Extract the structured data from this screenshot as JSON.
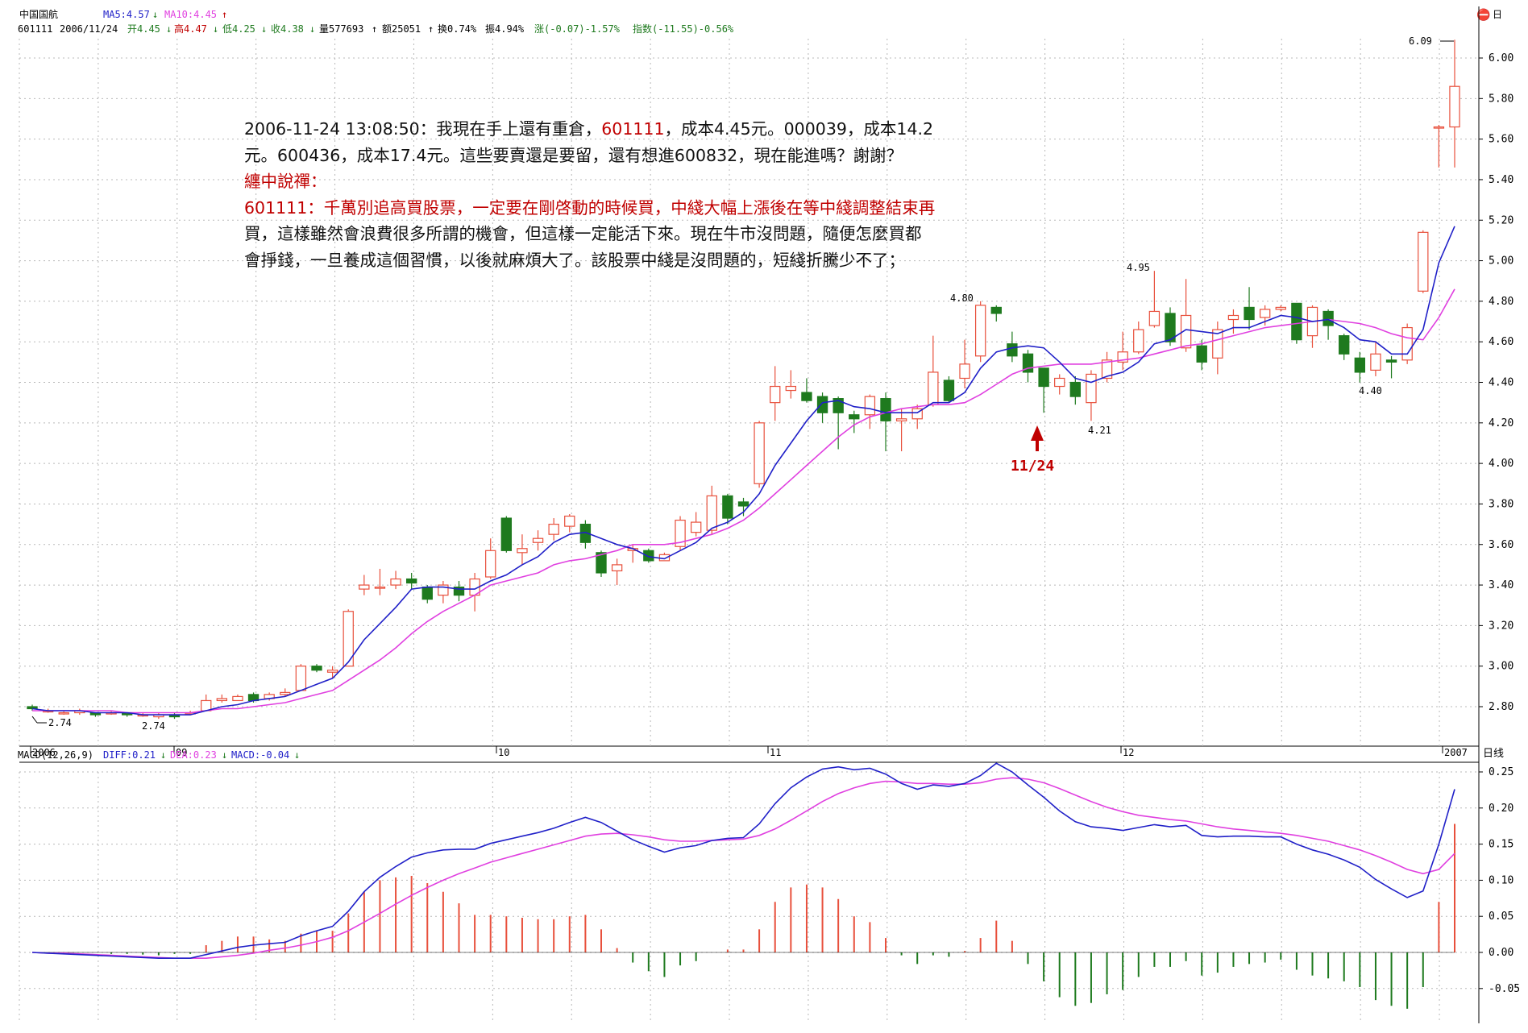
{
  "header": {
    "stock_name": "中国国航",
    "ma5_label": "MA5:4.57",
    "ma5_arrow": "↓",
    "ma10_label": "MA10:4.45",
    "ma10_arrow": "↑",
    "code": "601111",
    "date": "2006/11/24",
    "open": "开4.45",
    "open_arrow": "↓",
    "high": "高4.47",
    "high_arrow": "↓",
    "low": "低4.25",
    "low_arrow": "↓",
    "close": "收4.38",
    "close_arrow": "↓",
    "volume": "量577693",
    "volume_arrow": "↑",
    "amount": "额25051",
    "amount_arrow": "↑",
    "turnover": "换0.74%",
    "amplitude": "振4.94%",
    "change": "涨(-0.07)-1.57%",
    "index": "指数(-11.55)-0.56%",
    "right_icon": "⛔",
    "right_label": "日"
  },
  "colors": {
    "up": "#e8503c",
    "down": "#1e7a1e",
    "ma5": "#2020c8",
    "ma10": "#e040e0",
    "diff": "#2020c8",
    "dea": "#e040e0",
    "grid": "#b8b8b8",
    "red_text": "#c00000",
    "arrow": "#c00000"
  },
  "annotation": {
    "line1_a": "2006-11-24 13:08:50：我現在手上還有重倉，",
    "line1_code": "601111",
    "line1_b": "，成本4.45元。000039，成本14.2",
    "line2": "元。600436，成本17.4元。這些要賣還是要留，還有想進600832，現在能進嗎？謝謝？",
    "line3": "纏中說禪：",
    "line4_red": "601111：千萬別追高買股票，一定要在剛啓動的時候買，中綫大幅上漲後在等中綫調整結束再",
    "line5": "買，這樣雖然會浪費很多所謂的機會，但這樣一定能活下來。現在牛市沒問題，隨便怎麼買都",
    "line6": "會掙錢，一旦養成這個習慣，以後就麻煩大了。該股票中綫是沒問題的，短綫折騰少不了；"
  },
  "markers": {
    "arrow_label": "11/24",
    "peak_609": "6.09",
    "low_274a": "2.74",
    "low_274b": "2.74",
    "high_480": "4.80",
    "high_495": "4.95",
    "low_421": "4.21",
    "low_440": "4.40"
  },
  "axis": {
    "price_ticks": [
      "6.00",
      "5.80",
      "5.60",
      "5.40",
      "5.20",
      "5.00",
      "4.80",
      "4.60",
      "4.40",
      "4.20",
      "4.00",
      "3.80",
      "3.60",
      "3.40",
      "3.20",
      "3.00",
      "2.80"
    ],
    "date_labels": [
      "2006",
      "09",
      "10",
      "11",
      "12",
      "2007"
    ],
    "period_label": "日线",
    "macd_ticks": [
      "0.25",
      "0.20",
      "0.15",
      "0.10",
      "0.05",
      "0.00",
      "-0.05"
    ]
  },
  "macd_header": {
    "title": "MACD(12,26,9)",
    "diff": "DIFF:0.21",
    "diff_arrow": "↓",
    "dea": "DEA:0.23",
    "dea_arrow": "↓",
    "macd": "MACD:-0.04",
    "macd_arrow": "↓"
  },
  "chart_data": [
    {
      "type": "candlestick",
      "price_range": [
        2.7,
        6.15
      ],
      "candles": [
        [
          2.8,
          2.79,
          2.81,
          2.78
        ],
        [
          2.78,
          2.78,
          2.79,
          2.77
        ],
        [
          2.77,
          2.77,
          2.78,
          2.76
        ],
        [
          2.77,
          2.78,
          2.79,
          2.76
        ],
        [
          2.77,
          2.76,
          2.77,
          2.75
        ],
        [
          2.77,
          2.77,
          2.78,
          2.76
        ],
        [
          2.77,
          2.76,
          2.77,
          2.75
        ],
        [
          2.76,
          2.76,
          2.77,
          2.75
        ],
        [
          2.75,
          2.76,
          2.77,
          2.74
        ],
        [
          2.76,
          2.75,
          2.77,
          2.74
        ],
        [
          2.77,
          2.77,
          2.78,
          2.76
        ],
        [
          2.78,
          2.83,
          2.86,
          2.78
        ],
        [
          2.83,
          2.84,
          2.86,
          2.82
        ],
        [
          2.83,
          2.85,
          2.86,
          2.83
        ],
        [
          2.86,
          2.83,
          2.87,
          2.82
        ],
        [
          2.84,
          2.86,
          2.87,
          2.83
        ],
        [
          2.86,
          2.87,
          2.89,
          2.85
        ],
        [
          2.88,
          3.0,
          3.01,
          2.88
        ],
        [
          3.0,
          2.98,
          3.01,
          2.97
        ],
        [
          2.97,
          2.98,
          3.0,
          2.94
        ],
        [
          3.0,
          3.27,
          3.28,
          3.0
        ],
        [
          3.38,
          3.4,
          3.45,
          3.35
        ],
        [
          3.39,
          3.39,
          3.48,
          3.35
        ],
        [
          3.4,
          3.43,
          3.47,
          3.38
        ],
        [
          3.43,
          3.41,
          3.46,
          3.38
        ],
        [
          3.39,
          3.33,
          3.4,
          3.31
        ],
        [
          3.35,
          3.4,
          3.42,
          3.31
        ],
        [
          3.39,
          3.35,
          3.42,
          3.32
        ],
        [
          3.35,
          3.43,
          3.46,
          3.27
        ],
        [
          3.44,
          3.57,
          3.63,
          3.43
        ],
        [
          3.73,
          3.57,
          3.74,
          3.56
        ],
        [
          3.56,
          3.58,
          3.65,
          3.5
        ],
        [
          3.61,
          3.63,
          3.67,
          3.57
        ],
        [
          3.65,
          3.7,
          3.73,
          3.62
        ],
        [
          3.69,
          3.74,
          3.75,
          3.66
        ],
        [
          3.7,
          3.61,
          3.72,
          3.58
        ],
        [
          3.56,
          3.46,
          3.57,
          3.44
        ],
        [
          3.47,
          3.5,
          3.53,
          3.4
        ],
        [
          3.57,
          3.58,
          3.6,
          3.51
        ],
        [
          3.57,
          3.52,
          3.58,
          3.51
        ],
        [
          3.52,
          3.55,
          3.56,
          3.52
        ],
        [
          3.59,
          3.72,
          3.74,
          3.57
        ],
        [
          3.66,
          3.71,
          3.76,
          3.64
        ],
        [
          3.67,
          3.84,
          3.89,
          3.65
        ],
        [
          3.84,
          3.73,
          3.85,
          3.7
        ],
        [
          3.81,
          3.79,
          3.83,
          3.74
        ],
        [
          3.9,
          4.2,
          4.21,
          3.88
        ],
        [
          4.3,
          4.38,
          4.48,
          4.21
        ],
        [
          4.36,
          4.38,
          4.46,
          4.32
        ],
        [
          4.35,
          4.31,
          4.42,
          4.3
        ],
        [
          4.33,
          4.25,
          4.35,
          4.2
        ],
        [
          4.32,
          4.25,
          4.33,
          4.07
        ],
        [
          4.24,
          4.22,
          4.26,
          4.15
        ],
        [
          4.24,
          4.33,
          4.34,
          4.17
        ],
        [
          4.32,
          4.21,
          4.35,
          4.06
        ],
        [
          4.21,
          4.22,
          4.27,
          4.06
        ],
        [
          4.22,
          4.27,
          4.29,
          4.17
        ],
        [
          4.29,
          4.45,
          4.63,
          4.28
        ],
        [
          4.41,
          4.31,
          4.43,
          4.3
        ],
        [
          4.42,
          4.49,
          4.61,
          4.37
        ],
        [
          4.53,
          4.78,
          4.8,
          4.5
        ],
        [
          4.77,
          4.74,
          4.78,
          4.7
        ],
        [
          4.59,
          4.53,
          4.65,
          4.5
        ],
        [
          4.54,
          4.45,
          4.56,
          4.4
        ],
        [
          4.47,
          4.38,
          4.47,
          4.25
        ],
        [
          4.38,
          4.42,
          4.44,
          4.34
        ],
        [
          4.4,
          4.33,
          4.43,
          4.29
        ],
        [
          4.3,
          4.44,
          4.46,
          4.21
        ],
        [
          4.42,
          4.51,
          4.55,
          4.4
        ],
        [
          4.5,
          4.55,
          4.65,
          4.46
        ],
        [
          4.55,
          4.66,
          4.7,
          4.54
        ],
        [
          4.68,
          4.75,
          4.95,
          4.67
        ],
        [
          4.74,
          4.6,
          4.77,
          4.58
        ],
        [
          4.57,
          4.73,
          4.91,
          4.55
        ],
        [
          4.58,
          4.5,
          4.61,
          4.46
        ],
        [
          4.52,
          4.66,
          4.7,
          4.44
        ],
        [
          4.71,
          4.73,
          4.76,
          4.64
        ],
        [
          4.77,
          4.71,
          4.87,
          4.66
        ],
        [
          4.72,
          4.76,
          4.78,
          4.68
        ],
        [
          4.76,
          4.77,
          4.78,
          4.75
        ],
        [
          4.79,
          4.61,
          4.79,
          4.59
        ],
        [
          4.63,
          4.77,
          4.78,
          4.57
        ],
        [
          4.75,
          4.68,
          4.76,
          4.61
        ],
        [
          4.63,
          4.54,
          4.64,
          4.51
        ],
        [
          4.52,
          4.45,
          4.55,
          4.4
        ],
        [
          4.46,
          4.54,
          4.6,
          4.43
        ],
        [
          4.51,
          4.5,
          4.53,
          4.42
        ],
        [
          4.51,
          4.67,
          4.69,
          4.49
        ],
        [
          4.85,
          5.14,
          5.15,
          4.84
        ],
        [
          5.66,
          5.66,
          5.67,
          5.46
        ],
        [
          5.66,
          5.86,
          6.09,
          5.46
        ]
      ],
      "ma5": [
        2.79,
        2.78,
        2.78,
        2.78,
        2.77,
        2.77,
        2.77,
        2.76,
        2.76,
        2.76,
        2.76,
        2.78,
        2.8,
        2.81,
        2.83,
        2.84,
        2.85,
        2.88,
        2.91,
        2.94,
        3.02,
        3.13,
        3.21,
        3.29,
        3.38,
        3.39,
        3.39,
        3.38,
        3.38,
        3.42,
        3.45,
        3.5,
        3.54,
        3.61,
        3.65,
        3.66,
        3.63,
        3.6,
        3.58,
        3.54,
        3.53,
        3.57,
        3.61,
        3.68,
        3.71,
        3.76,
        3.85,
        3.99,
        4.1,
        4.21,
        4.3,
        4.31,
        4.28,
        4.27,
        4.25,
        4.25,
        4.25,
        4.3,
        4.3,
        4.35,
        4.47,
        4.55,
        4.57,
        4.58,
        4.57,
        4.5,
        4.42,
        4.4,
        4.43,
        4.45,
        4.5,
        4.59,
        4.61,
        4.66,
        4.65,
        4.64,
        4.67,
        4.67,
        4.7,
        4.73,
        4.72,
        4.7,
        4.71,
        4.67,
        4.61,
        4.6,
        4.54,
        4.54,
        4.66,
        4.99,
        5.17
      ],
      "ma10": [
        2.78,
        2.78,
        2.78,
        2.78,
        2.78,
        2.78,
        2.77,
        2.77,
        2.77,
        2.77,
        2.77,
        2.78,
        2.79,
        2.79,
        2.8,
        2.81,
        2.82,
        2.84,
        2.86,
        2.88,
        2.93,
        2.98,
        3.03,
        3.09,
        3.16,
        3.22,
        3.27,
        3.31,
        3.35,
        3.4,
        3.42,
        3.44,
        3.46,
        3.5,
        3.52,
        3.53,
        3.55,
        3.57,
        3.6,
        3.6,
        3.6,
        3.61,
        3.63,
        3.65,
        3.68,
        3.72,
        3.78,
        3.85,
        3.92,
        3.99,
        4.06,
        4.13,
        4.19,
        4.23,
        4.25,
        4.27,
        4.28,
        4.29,
        4.29,
        4.3,
        4.34,
        4.39,
        4.44,
        4.47,
        4.48,
        4.49,
        4.49,
        4.49,
        4.5,
        4.51,
        4.52,
        4.54,
        4.56,
        4.58,
        4.59,
        4.61,
        4.63,
        4.65,
        4.67,
        4.68,
        4.69,
        4.7,
        4.71,
        4.7,
        4.69,
        4.67,
        4.64,
        4.62,
        4.61,
        4.72,
        4.86
      ]
    },
    {
      "type": "macd",
      "range": [
        -0.08,
        0.27
      ],
      "diff": [
        0.0,
        -0.001,
        -0.002,
        -0.003,
        -0.004,
        -0.005,
        -0.006,
        -0.007,
        -0.008,
        -0.008,
        -0.008,
        -0.003,
        0.002,
        0.007,
        0.01,
        0.012,
        0.014,
        0.023,
        0.03,
        0.036,
        0.057,
        0.084,
        0.104,
        0.119,
        0.132,
        0.138,
        0.142,
        0.143,
        0.143,
        0.151,
        0.156,
        0.161,
        0.166,
        0.172,
        0.18,
        0.187,
        0.18,
        0.168,
        0.156,
        0.147,
        0.139,
        0.145,
        0.148,
        0.155,
        0.158,
        0.159,
        0.178,
        0.206,
        0.228,
        0.243,
        0.254,
        0.257,
        0.253,
        0.255,
        0.247,
        0.234,
        0.226,
        0.232,
        0.23,
        0.234,
        0.245,
        0.262,
        0.25,
        0.232,
        0.215,
        0.196,
        0.181,
        0.174,
        0.172,
        0.169,
        0.173,
        0.177,
        0.174,
        0.176,
        0.162,
        0.16,
        0.161,
        0.161,
        0.16,
        0.16,
        0.15,
        0.142,
        0.136,
        0.128,
        0.118,
        0.101,
        0.088,
        0.076,
        0.085,
        0.15,
        0.226
      ],
      "dea": [
        0.0,
        -0.001,
        -0.001,
        -0.002,
        -0.003,
        -0.004,
        -0.005,
        -0.006,
        -0.007,
        -0.008,
        -0.008,
        -0.008,
        -0.006,
        -0.004,
        -0.001,
        0.003,
        0.006,
        0.01,
        0.015,
        0.021,
        0.03,
        0.042,
        0.054,
        0.067,
        0.079,
        0.09,
        0.1,
        0.109,
        0.117,
        0.125,
        0.131,
        0.137,
        0.143,
        0.149,
        0.155,
        0.161,
        0.164,
        0.165,
        0.163,
        0.16,
        0.156,
        0.154,
        0.154,
        0.155,
        0.156,
        0.157,
        0.162,
        0.171,
        0.183,
        0.196,
        0.209,
        0.22,
        0.228,
        0.234,
        0.237,
        0.236,
        0.234,
        0.234,
        0.233,
        0.233,
        0.235,
        0.24,
        0.242,
        0.24,
        0.235,
        0.227,
        0.218,
        0.209,
        0.201,
        0.195,
        0.19,
        0.187,
        0.184,
        0.182,
        0.178,
        0.174,
        0.171,
        0.169,
        0.167,
        0.165,
        0.162,
        0.158,
        0.154,
        0.148,
        0.142,
        0.134,
        0.125,
        0.115,
        0.109,
        0.115,
        0.137
      ],
      "hist": [
        0.0,
        0.0,
        0.0,
        0.0,
        0.0,
        -0.002,
        -0.002,
        -0.003,
        -0.004,
        -0.002,
        -0.002,
        0.01,
        0.016,
        0.022,
        0.022,
        0.018,
        0.016,
        0.026,
        0.03,
        0.03,
        0.054,
        0.084,
        0.1,
        0.104,
        0.106,
        0.096,
        0.084,
        0.068,
        0.052,
        0.052,
        0.05,
        0.048,
        0.046,
        0.046,
        0.05,
        0.052,
        0.032,
        0.006,
        -0.014,
        -0.026,
        -0.034,
        -0.018,
        -0.012,
        0.0,
        0.004,
        0.004,
        0.032,
        0.07,
        0.09,
        0.094,
        0.09,
        0.074,
        0.05,
        0.042,
        0.02,
        -0.004,
        -0.016,
        -0.004,
        -0.006,
        0.002,
        0.02,
        0.044,
        0.016,
        -0.016,
        -0.04,
        -0.062,
        -0.074,
        -0.07,
        -0.058,
        -0.052,
        -0.034,
        -0.02,
        -0.02,
        -0.012,
        -0.032,
        -0.028,
        -0.02,
        -0.016,
        -0.014,
        -0.01,
        -0.024,
        -0.032,
        -0.036,
        -0.04,
        -0.048,
        -0.066,
        -0.074,
        -0.078,
        -0.048,
        0.07,
        0.178
      ]
    }
  ]
}
